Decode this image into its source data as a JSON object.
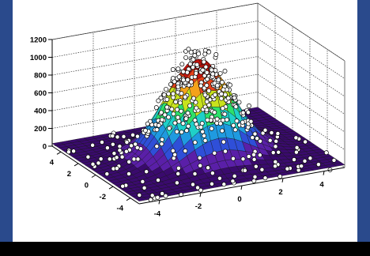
{
  "chart_data": {
    "type": "surface3d",
    "title": "",
    "xlabel": "",
    "ylabel": "",
    "zlabel": "",
    "x_range": [
      -5,
      5
    ],
    "y_range": [
      -5,
      5
    ],
    "z_range": [
      0,
      1200
    ],
    "z_ticks": [
      "0",
      "200",
      "400",
      "600",
      "800",
      "1000",
      "1200"
    ],
    "x_ticks": [
      "-4",
      "-2",
      "0",
      "2",
      "4"
    ],
    "y_ticks": [
      "-4",
      "-2",
      "0",
      "2",
      "4"
    ],
    "surface": {
      "function": "2D Gaussian",
      "mean_x": 0,
      "mean_y": 0,
      "sigma": 1.5,
      "peak": 1070,
      "base": 30
    },
    "markers": "white open circles (scattered data points)",
    "grid": true,
    "colors": {
      "background": "#ffffff",
      "frame": "#2a4a8c",
      "page": "#000000",
      "palette": [
        "#3a0a6e",
        "#5a1fa8",
        "#2f4fd8",
        "#1f9ae0",
        "#1fd0c8",
        "#2ee06a",
        "#c8e21c",
        "#f4a21a",
        "#e8421a",
        "#c4140e"
      ]
    }
  }
}
